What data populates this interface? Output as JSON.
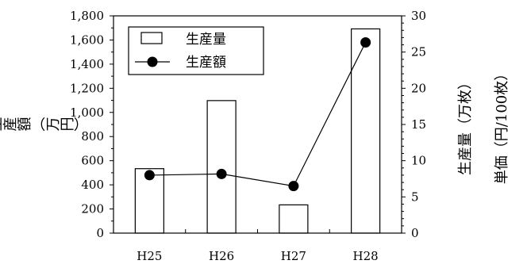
{
  "chart_data": {
    "type": "bar",
    "categories": [
      "H25",
      "H26",
      "H27",
      "H28"
    ],
    "series": [
      {
        "name": "生産量",
        "type": "bar",
        "axis": "right",
        "values": [
          8.9,
          18.3,
          3.9,
          28.2
        ]
      },
      {
        "name": "生産額",
        "type": "line",
        "axis": "left",
        "values": [
          480,
          490,
          390,
          1580
        ]
      }
    ],
    "y_left": {
      "label": "生産額（万円）",
      "range": [
        0,
        1800
      ],
      "ticks": [
        "0",
        "200",
        "400",
        "600",
        "800",
        "1,000",
        "1,200",
        "1,400",
        "1,600",
        "1,800"
      ]
    },
    "y_right": {
      "label": "生産量（万枚）",
      "range": [
        0,
        30
      ],
      "ticks": [
        "0",
        "5",
        "10",
        "15",
        "20",
        "25",
        "30"
      ]
    },
    "y_right2_label": "単価（円/100枚）",
    "legend_position": "top-left",
    "grid": false
  },
  "colors": {
    "bar_fill": "#ffffff",
    "stroke": "#000000",
    "marker": "#000000"
  }
}
